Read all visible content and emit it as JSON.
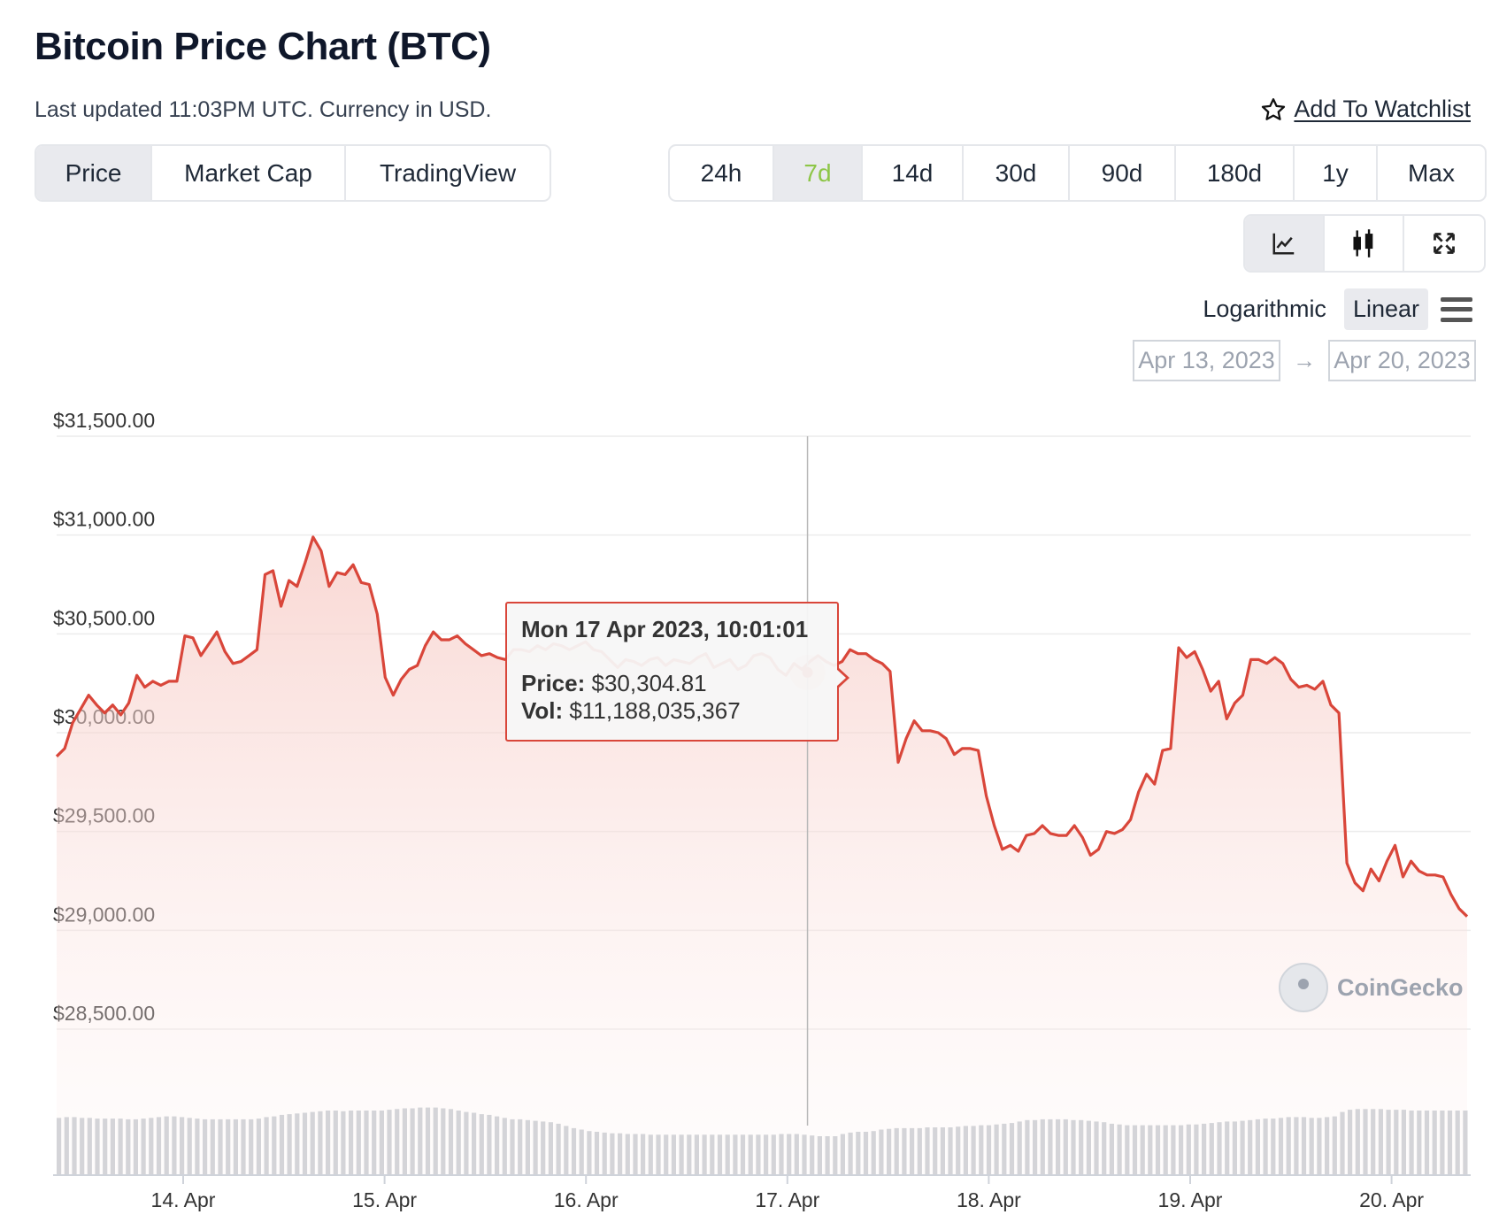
{
  "header": {
    "title": "Bitcoin Price Chart (BTC)",
    "subtitle": "Last updated 11:03PM UTC. Currency in USD.",
    "watchlist_label": "Add To Watchlist"
  },
  "chart_type_tabs": [
    {
      "label": "Price",
      "active": true
    },
    {
      "label": "Market Cap",
      "active": false
    },
    {
      "label": "TradingView",
      "active": false
    }
  ],
  "range_tabs": [
    {
      "label": "24h",
      "active": false
    },
    {
      "label": "7d",
      "active": true
    },
    {
      "label": "14d",
      "active": false
    },
    {
      "label": "30d",
      "active": false
    },
    {
      "label": "90d",
      "active": false
    },
    {
      "label": "180d",
      "active": false
    },
    {
      "label": "1y",
      "active": false
    },
    {
      "label": "Max",
      "active": false
    }
  ],
  "view_buttons": [
    {
      "icon": "line-chart-icon",
      "active": true
    },
    {
      "icon": "candlestick-icon",
      "active": false
    },
    {
      "icon": "fullscreen-icon",
      "active": false
    }
  ],
  "scale": {
    "logarithmic": "Logarithmic",
    "linear": "Linear",
    "active": "linear"
  },
  "date_range": {
    "from": "Apr 13, 2023",
    "to": "Apr 20, 2023"
  },
  "tooltip": {
    "date": "Mon 17 Apr 2023, 10:01:01",
    "price_label": "Price:",
    "price_value": "$30,304.81",
    "vol_label": "Vol:",
    "vol_value": "$11,188,035,367"
  },
  "brand": "CoinGecko",
  "colors": {
    "line": "#d9463a",
    "fill": "#fbe3e0",
    "volume": "#d4d4d8",
    "active_range": "#8dc647"
  },
  "chart_data": {
    "type": "area",
    "title": "",
    "xlabel": "",
    "ylabel": "",
    "ylim": [
      28500,
      31500
    ],
    "yticks": [
      "$31,500.00",
      "$31,000.00",
      "$30,500.00",
      "$30,000.00",
      "$29,500.00",
      "$29,000.00",
      "$28,500.00"
    ],
    "xticks": [
      "14. Apr",
      "15. Apr",
      "16. Apr",
      "17. Apr",
      "18. Apr",
      "19. Apr",
      "20. Apr"
    ],
    "x_range_days": [
      0,
      7
    ],
    "series": [
      {
        "values": [
          29880,
          29920,
          30050,
          30120,
          30190,
          30140,
          30100,
          30140,
          30090,
          30150,
          30290,
          30230,
          30260,
          30240,
          30260,
          30260,
          30490,
          30480,
          30390,
          30450,
          30510,
          30410,
          30350,
          30360,
          30390,
          30420,
          30800,
          30820,
          30640,
          30770,
          30740,
          30860,
          30990,
          30920,
          30740,
          30810,
          30800,
          30850,
          30760,
          30750,
          30600,
          30280,
          30190,
          30270,
          30320,
          30340,
          30440,
          30510,
          30470,
          30470,
          30490,
          30450,
          30420,
          30390,
          30400,
          30380,
          30370,
          30420,
          30420,
          30410,
          30440,
          30420,
          30450,
          30440,
          30420,
          30440,
          30460,
          30420,
          30410,
          30370,
          30330,
          30370,
          30360,
          30340,
          30370,
          30380,
          30340,
          30370,
          30360,
          30350,
          30380,
          30400,
          30330,
          30350,
          30370,
          30320,
          30340,
          30390,
          30400,
          30380,
          30320,
          30290,
          30350,
          30320,
          30360,
          30390,
          30360,
          30340,
          30360,
          30420,
          30400,
          30400,
          30370,
          30350,
          30310,
          29850,
          29970,
          30060,
          30010,
          30010,
          30000,
          29970,
          29890,
          29920,
          29920,
          29910,
          29680,
          29530,
          29410,
          29430,
          29400,
          29480,
          29490,
          29530,
          29490,
          29480,
          29480,
          29530,
          29470,
          29380,
          29410,
          29500,
          29490,
          29510,
          29560,
          29700,
          29790,
          29740,
          29910,
          29920,
          30430,
          30380,
          30410,
          30320,
          30210,
          30260,
          30070,
          30150,
          30190,
          30370,
          30370,
          30350,
          30380,
          30350,
          30270,
          30230,
          30240,
          30220,
          30260,
          30140,
          30100,
          29340,
          29240,
          29200,
          29310,
          29250,
          29350,
          29430,
          29270,
          29350,
          29300,
          29280,
          29280,
          29270,
          29180,
          29110,
          29070
        ]
      }
    ],
    "volume": [
      0.78,
      0.79,
      0.79,
      0.78,
      0.78,
      0.77,
      0.77,
      0.77,
      0.77,
      0.76,
      0.76,
      0.77,
      0.78,
      0.79,
      0.8,
      0.8,
      0.79,
      0.78,
      0.77,
      0.76,
      0.76,
      0.76,
      0.76,
      0.76,
      0.76,
      0.76,
      0.77,
      0.79,
      0.8,
      0.82,
      0.83,
      0.84,
      0.85,
      0.86,
      0.87,
      0.88,
      0.88,
      0.87,
      0.88,
      0.88,
      0.88,
      0.88,
      0.88,
      0.89,
      0.9,
      0.91,
      0.91,
      0.92,
      0.92,
      0.92,
      0.91,
      0.9,
      0.88,
      0.86,
      0.85,
      0.83,
      0.82,
      0.8,
      0.78,
      0.76,
      0.76,
      0.75,
      0.74,
      0.73,
      0.72,
      0.7,
      0.67,
      0.64,
      0.62,
      0.6,
      0.59,
      0.58,
      0.57,
      0.57,
      0.56,
      0.56,
      0.56,
      0.55,
      0.55,
      0.55,
      0.55,
      0.55,
      0.55,
      0.55,
      0.55,
      0.55,
      0.55,
      0.55,
      0.55,
      0.55,
      0.55,
      0.55,
      0.55,
      0.55,
      0.56,
      0.56,
      0.56,
      0.55,
      0.54,
      0.53,
      0.53,
      0.53,
      0.56,
      0.58,
      0.59,
      0.59,
      0.6,
      0.62,
      0.63,
      0.64,
      0.64,
      0.64,
      0.64,
      0.65,
      0.65,
      0.65,
      0.65,
      0.66,
      0.67,
      0.67,
      0.68,
      0.68,
      0.69,
      0.7,
      0.71,
      0.73,
      0.75,
      0.75,
      0.76,
      0.76,
      0.76,
      0.76,
      0.75,
      0.75,
      0.74,
      0.73,
      0.72,
      0.7,
      0.69,
      0.68,
      0.68,
      0.68,
      0.68,
      0.68,
      0.68,
      0.68,
      0.68,
      0.69,
      0.69,
      0.7,
      0.71,
      0.72,
      0.73,
      0.73,
      0.74,
      0.75,
      0.76,
      0.77,
      0.77,
      0.78,
      0.79,
      0.79,
      0.79,
      0.78,
      0.78,
      0.79,
      0.8,
      0.86,
      0.89,
      0.9,
      0.9,
      0.9,
      0.9,
      0.89,
      0.89,
      0.89,
      0.88,
      0.88,
      0.88,
      0.88,
      0.88,
      0.88,
      0.88,
      0.88
    ],
    "crosshair_day": 4.1,
    "tooltip_value": 30304.81
  }
}
